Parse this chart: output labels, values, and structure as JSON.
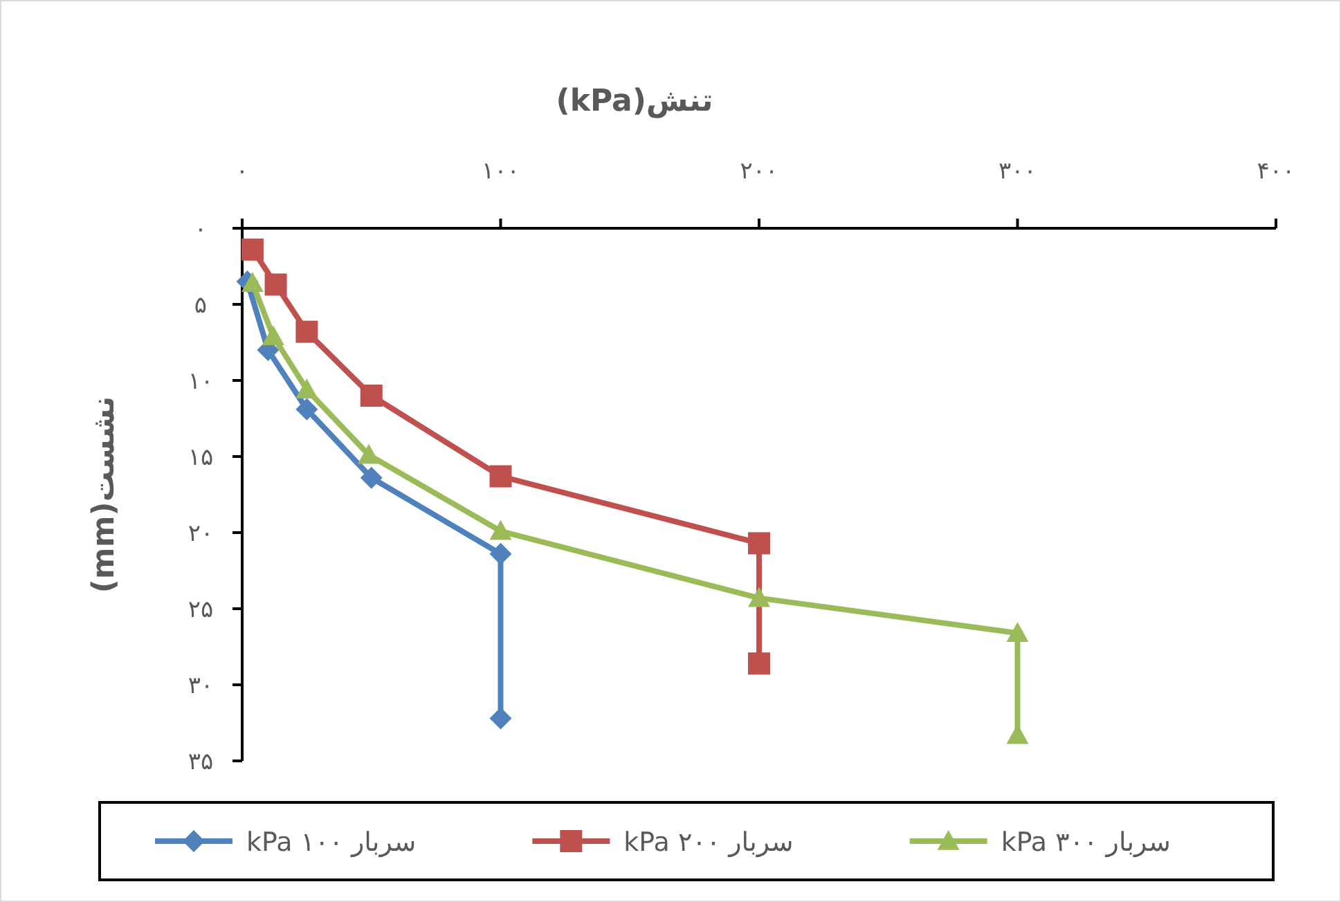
{
  "chart_data": {
    "type": "line",
    "xlabel": "تنش(kPa)",
    "ylabel": "نشست(mm)",
    "xlim": [
      0,
      400
    ],
    "xticks": [
      {
        "value": 0,
        "label": "۰"
      },
      {
        "value": 100,
        "label": "۱۰۰"
      },
      {
        "value": 200,
        "label": "۲۰۰"
      },
      {
        "value": 300,
        "label": "۳۰۰"
      },
      {
        "value": 400,
        "label": "۴۰۰"
      }
    ],
    "ylim": [
      35,
      0
    ],
    "yticks": [
      {
        "value": 0,
        "label": "۰"
      },
      {
        "value": 5,
        "label": "۵"
      },
      {
        "value": 10,
        "label": "۱۰"
      },
      {
        "value": 15,
        "label": "۱۵"
      },
      {
        "value": 20,
        "label": "۲۰"
      },
      {
        "value": 25,
        "label": "۲۵"
      },
      {
        "value": 30,
        "label": "۳۰"
      },
      {
        "value": 35,
        "label": "۳۵"
      }
    ],
    "grid": false,
    "legend": "bottom",
    "line_style": "solid",
    "series": [
      {
        "name": "سربار ۱۰۰ kPa",
        "color": "#4f81bd",
        "marker": "diamond",
        "x": [
          2,
          10,
          25,
          50,
          100,
          100
        ],
        "values": [
          3.5,
          8.0,
          11.9,
          16.4,
          21.4,
          32.2
        ]
      },
      {
        "name": "سربار ۲۰۰ kPa",
        "color": "#c0504d",
        "marker": "square",
        "x": [
          4,
          13,
          25,
          50,
          100,
          200,
          200
        ],
        "values": [
          1.4,
          3.7,
          6.8,
          11.0,
          16.3,
          20.7,
          28.6
        ]
      },
      {
        "name": "سربار ۳۰۰ kPa",
        "color": "#9bbb59",
        "marker": "triangle",
        "x": [
          4,
          12,
          25,
          49,
          100,
          200,
          300,
          300
        ],
        "values": [
          3.6,
          7.1,
          10.6,
          14.9,
          19.9,
          24.3,
          26.6,
          33.3
        ]
      }
    ]
  }
}
